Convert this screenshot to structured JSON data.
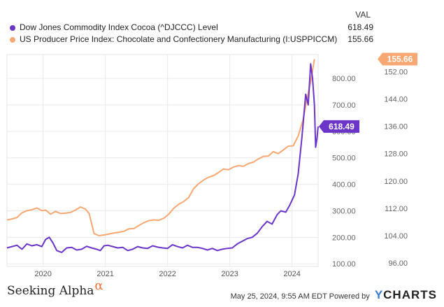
{
  "legend": {
    "header": "VAL",
    "items": [
      {
        "name": "Dow Jones Commodity Index Cocoa (^DJCCC) Level",
        "value": "618.49",
        "color": "#6a35c8"
      },
      {
        "name": "US Producer Price Index: Chocolate and Confectionery Manufacturing (I:USPPICCM)",
        "value": "155.66",
        "color": "#f7a872"
      }
    ]
  },
  "footer": {
    "brand_left": "Seeking Alpha",
    "brand_left_symbol": "α",
    "timestamp": "May 25, 2024, 9:55 AM EDT Powered by",
    "brand_right_y": "Y",
    "brand_right_rest": "CHARTS"
  },
  "chart_data": {
    "type": "line",
    "x_ticks": [
      "2020",
      "2021",
      "2022",
      "2023",
      "2024"
    ],
    "x_range": [
      2019.42,
      2024.42
    ],
    "y_left": {
      "ticks": [
        "100.00",
        "200.00",
        "300.00",
        "400.00",
        "500.00",
        "600.00",
        "700.00",
        "800.00"
      ],
      "range": [
        90,
        890
      ]
    },
    "y_right": {
      "ticks": [
        "96.00",
        "104.00",
        "112.00",
        "120.00",
        "128.00",
        "136.00",
        "144.00",
        "152.00"
      ],
      "range": [
        95,
        157
      ]
    },
    "grid": true,
    "series": [
      {
        "name": "Dow Jones Commodity Index Cocoa (^DJCCC) Level",
        "axis": "left",
        "color": "#6a35c8",
        "last_label": "618.49",
        "points": [
          [
            2019.42,
            160
          ],
          [
            2019.5,
            165
          ],
          [
            2019.58,
            170
          ],
          [
            2019.66,
            155
          ],
          [
            2019.74,
            175
          ],
          [
            2019.82,
            168
          ],
          [
            2019.9,
            172
          ],
          [
            2019.98,
            165
          ],
          [
            2020.04,
            192
          ],
          [
            2020.1,
            200
          ],
          [
            2020.16,
            178
          ],
          [
            2020.22,
            150
          ],
          [
            2020.3,
            143
          ],
          [
            2020.38,
            160
          ],
          [
            2020.46,
            162
          ],
          [
            2020.54,
            152
          ],
          [
            2020.62,
            155
          ],
          [
            2020.7,
            166
          ],
          [
            2020.78,
            160
          ],
          [
            2020.86,
            155
          ],
          [
            2020.92,
            150
          ],
          [
            2020.98,
            168
          ],
          [
            2021.04,
            170
          ],
          [
            2021.12,
            165
          ],
          [
            2021.2,
            160
          ],
          [
            2021.28,
            162
          ],
          [
            2021.36,
            150
          ],
          [
            2021.44,
            155
          ],
          [
            2021.52,
            165
          ],
          [
            2021.6,
            160
          ],
          [
            2021.68,
            158
          ],
          [
            2021.76,
            168
          ],
          [
            2021.84,
            163
          ],
          [
            2021.92,
            160
          ],
          [
            2022.0,
            158
          ],
          [
            2022.08,
            172
          ],
          [
            2022.16,
            165
          ],
          [
            2022.24,
            160
          ],
          [
            2022.32,
            170
          ],
          [
            2022.4,
            162
          ],
          [
            2022.48,
            162
          ],
          [
            2022.56,
            158
          ],
          [
            2022.64,
            152
          ],
          [
            2022.72,
            158
          ],
          [
            2022.8,
            150
          ],
          [
            2022.88,
            155
          ],
          [
            2022.96,
            158
          ],
          [
            2023.04,
            160
          ],
          [
            2023.12,
            175
          ],
          [
            2023.2,
            185
          ],
          [
            2023.28,
            195
          ],
          [
            2023.36,
            200
          ],
          [
            2023.44,
            215
          ],
          [
            2023.52,
            240
          ],
          [
            2023.6,
            260
          ],
          [
            2023.68,
            250
          ],
          [
            2023.76,
            285
          ],
          [
            2023.82,
            300
          ],
          [
            2023.9,
            295
          ],
          [
            2023.96,
            320
          ],
          [
            2024.04,
            360
          ],
          [
            2024.1,
            440
          ],
          [
            2024.16,
            580
          ],
          [
            2024.22,
            740
          ],
          [
            2024.26,
            700
          ],
          [
            2024.3,
            855
          ],
          [
            2024.33,
            800
          ],
          [
            2024.36,
            700
          ],
          [
            2024.38,
            540
          ],
          [
            2024.4,
            570
          ],
          [
            2024.42,
            618.49
          ]
        ]
      },
      {
        "name": "US Producer Price Index: Chocolate and Confectionery Manufacturing (I:USPPICCM)",
        "axis": "right",
        "color": "#f7a872",
        "last_label": "155.66",
        "points": [
          [
            2019.42,
            108.6
          ],
          [
            2019.5,
            108.9
          ],
          [
            2019.58,
            109.3
          ],
          [
            2019.66,
            110.7
          ],
          [
            2019.74,
            111.3
          ],
          [
            2019.82,
            111.6
          ],
          [
            2019.9,
            112.1
          ],
          [
            2019.98,
            111.3
          ],
          [
            2020.04,
            111.5
          ],
          [
            2020.12,
            110.3
          ],
          [
            2020.2,
            111.1
          ],
          [
            2020.28,
            110.5
          ],
          [
            2020.36,
            110.6
          ],
          [
            2020.44,
            110.8
          ],
          [
            2020.52,
            111.5
          ],
          [
            2020.6,
            112.4
          ],
          [
            2020.68,
            111.8
          ],
          [
            2020.74,
            110.5
          ],
          [
            2020.82,
            104.6
          ],
          [
            2020.9,
            104.0
          ],
          [
            2020.98,
            104.2
          ],
          [
            2021.06,
            104.5
          ],
          [
            2021.14,
            104.8
          ],
          [
            2021.22,
            105.0
          ],
          [
            2021.3,
            105.3
          ],
          [
            2021.38,
            106.0
          ],
          [
            2021.46,
            106.1
          ],
          [
            2021.54,
            107.0
          ],
          [
            2021.62,
            107.8
          ],
          [
            2021.7,
            108.4
          ],
          [
            2021.78,
            108.6
          ],
          [
            2021.86,
            108.5
          ],
          [
            2021.94,
            109.1
          ],
          [
            2022.02,
            110.3
          ],
          [
            2022.1,
            112.0
          ],
          [
            2022.18,
            113.2
          ],
          [
            2022.26,
            114.0
          ],
          [
            2022.34,
            115.2
          ],
          [
            2022.42,
            117.8
          ],
          [
            2022.5,
            119.2
          ],
          [
            2022.58,
            120.3
          ],
          [
            2022.66,
            121.1
          ],
          [
            2022.74,
            121.6
          ],
          [
            2022.82,
            122.5
          ],
          [
            2022.9,
            123.5
          ],
          [
            2022.98,
            123.3
          ],
          [
            2023.06,
            124.1
          ],
          [
            2023.14,
            124.5
          ],
          [
            2023.22,
            124.3
          ],
          [
            2023.3,
            125.1
          ],
          [
            2023.38,
            125.5
          ],
          [
            2023.46,
            126.5
          ],
          [
            2023.54,
            127.2
          ],
          [
            2023.62,
            127.3
          ],
          [
            2023.7,
            128.6
          ],
          [
            2023.78,
            128.0
          ],
          [
            2023.86,
            129.1
          ],
          [
            2023.94,
            130.2
          ],
          [
            2024.02,
            130.3
          ],
          [
            2024.1,
            133.2
          ],
          [
            2024.18,
            138.0
          ],
          [
            2024.24,
            144.0
          ],
          [
            2024.3,
            149.0
          ],
          [
            2024.36,
            155.66
          ]
        ]
      }
    ]
  }
}
